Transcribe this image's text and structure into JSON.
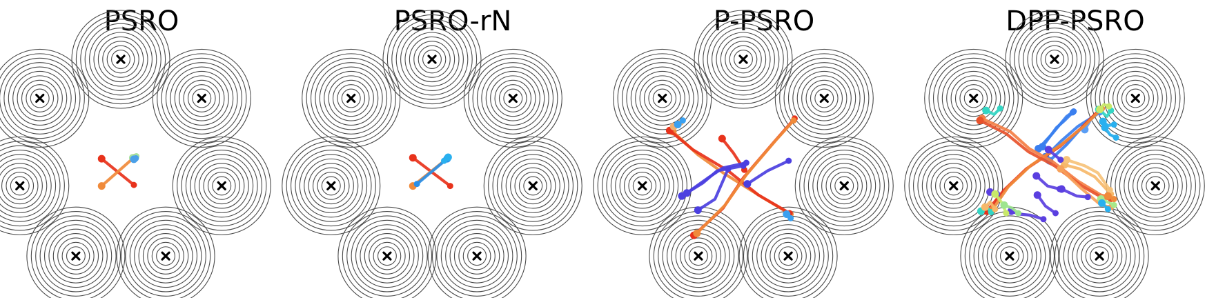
{
  "figure": {
    "ring_color": "#4a4a4a",
    "center_marker": "x-cross-marker",
    "mixture_centers": 7,
    "rings_per_center": 10
  },
  "panels": [
    {
      "title": "PSRO",
      "trajectories": [
        {
          "color": "#e8321b",
          "pts": [
            [
              -1.9,
              0.4
            ],
            [
              1.3,
              -2.2
            ]
          ]
        },
        {
          "color": "#f08a3a",
          "pts": [
            [
              -1.9,
              -2.3
            ],
            [
              1.4,
              0.6
            ]
          ]
        },
        {
          "color": "#a6e1a0",
          "pts": [
            [
              1.2,
              0.5
            ],
            [
              1.55,
              0.65
            ]
          ]
        },
        {
          "color": "#4aa0e8",
          "pts": [
            [
              1.3,
              0.35
            ],
            [
              1.5,
              0.45
            ]
          ]
        }
      ]
    },
    {
      "title": "PSRO-rN",
      "trajectories": [
        {
          "color": "#e8321b",
          "pts": [
            [
              -1.9,
              0.5
            ],
            [
              1.8,
              -2.3
            ]
          ]
        },
        {
          "color": "#f08a3a",
          "pts": [
            [
              -1.9,
              -2.3
            ],
            [
              1.6,
              0.5
            ]
          ]
        },
        {
          "color": "#2a8fe8",
          "pts": [
            [
              1.5,
              0.4
            ],
            [
              -1.5,
              -2.1
            ]
          ]
        },
        {
          "color": "#29b0ef",
          "pts": [
            [
              1.6,
              0.55
            ],
            [
              1.2,
              0.2
            ]
          ]
        }
      ]
    },
    {
      "title": "P-PSRO",
      "trajectories": [
        {
          "color": "#f08a3a",
          "pts": [
            [
              -7.0,
              3.1
            ],
            [
              -4.5,
              0.8
            ],
            [
              -2.0,
              -1.0
            ],
            [
              2.0,
              -3.5
            ],
            [
              4.7,
              -5.1
            ]
          ]
        },
        {
          "color": "#e8321b",
          "pts": [
            [
              -7.3,
              3.2
            ],
            [
              -5.0,
              1.3
            ],
            [
              -1.5,
              -0.8
            ],
            [
              1.5,
              -3.2
            ],
            [
              4.6,
              -5.0
            ]
          ]
        },
        {
          "color": "#e8321b",
          "pts": [
            [
              -4.9,
              -7.2
            ],
            [
              -2.0,
              -4.5
            ],
            [
              0.0,
              -1.5
            ],
            [
              3.0,
              2.0
            ],
            [
              5.1,
              4.4
            ]
          ]
        },
        {
          "color": "#f08a3a",
          "pts": [
            [
              -4.6,
              -7.0
            ],
            [
              -1.8,
              -4.2
            ],
            [
              0.3,
              -1.2
            ],
            [
              3.2,
              2.2
            ],
            [
              5.0,
              4.2
            ]
          ]
        },
        {
          "color": "#e8321b",
          "pts": [
            [
              -2.1,
              2.4
            ],
            [
              -1.0,
              1.0
            ],
            [
              0.1,
              -0.7
            ]
          ]
        },
        {
          "color": "#4b3fe0",
          "pts": [
            [
              -6.1,
              -3.3
            ],
            [
              -4.0,
              -2.0
            ],
            [
              -2.6,
              -0.8
            ],
            [
              0.0,
              -0.3
            ]
          ]
        },
        {
          "color": "#4b3fe0",
          "pts": [
            [
              -5.6,
              -3.0
            ],
            [
              -3.5,
              -1.5
            ],
            [
              -2.0,
              -0.5
            ],
            [
              0.3,
              0.0
            ]
          ]
        },
        {
          "color": "#4b3fe0",
          "pts": [
            [
              -4.5,
              -4.7
            ],
            [
              -2.8,
              -3.6
            ],
            [
              -1.5,
              -0.6
            ]
          ]
        },
        {
          "color": "#4b3fe0",
          "pts": [
            [
              0.4,
              -2.1
            ],
            [
              2.4,
              -0.8
            ],
            [
              4.5,
              0.2
            ]
          ]
        },
        {
          "color": "#f0b070",
          "pts": [
            [
              -6.9,
              3.6
            ],
            [
              -6.2,
              4.0
            ]
          ]
        },
        {
          "color": "#3aa0f0",
          "pts": [
            [
              -6.5,
              3.8
            ],
            [
              -6.0,
              4.2
            ]
          ]
        },
        {
          "color": "#3aa0f0",
          "pts": [
            [
              4.3,
              -5.1
            ],
            [
              4.7,
              -5.5
            ]
          ]
        }
      ]
    },
    {
      "title": "DPP-PSRO",
      "trajectories": [
        {
          "color": "#3a7fef",
          "pts": [
            [
              -1.6,
              1.4
            ],
            [
              -0.3,
              2.8
            ],
            [
              1.2,
              4.6
            ],
            [
              1.9,
              5.1
            ]
          ]
        },
        {
          "color": "#3a7fef",
          "pts": [
            [
              -1.2,
              1.6
            ],
            [
              0.2,
              3.5
            ],
            [
              1.0,
              4.2
            ],
            [
              1.8,
              5.0
            ]
          ]
        },
        {
          "color": "#3a7fef",
          "pts": [
            [
              -0.9,
              0.6
            ],
            [
              0.7,
              2.2
            ],
            [
              2.3,
              3.6
            ],
            [
              4.5,
              5.0
            ]
          ]
        },
        {
          "color": "#3a7fef",
          "pts": [
            [
              -0.5,
              0.2
            ],
            [
              1.2,
              1.8
            ],
            [
              2.8,
              3.6
            ],
            [
              4.6,
              5.2
            ]
          ]
        },
        {
          "color": "#5a9ef5",
          "pts": [
            [
              3.0,
              3.3
            ],
            [
              3.8,
              4.6
            ],
            [
              4.6,
              5.1
            ]
          ]
        },
        {
          "color": "#e8321b",
          "pts": [
            [
              -6.7,
              -4.8
            ],
            [
              -5.0,
              -2.7
            ],
            [
              -2.8,
              -0.6
            ],
            [
              0.5,
              1.6
            ],
            [
              2.6,
              3.4
            ],
            [
              4.5,
              5.3
            ]
          ]
        },
        {
          "color": "#f08a3a",
          "pts": [
            [
              -6.2,
              -4.7
            ],
            [
              -4.6,
              -2.4
            ],
            [
              -2.4,
              -0.3
            ],
            [
              0.8,
              1.9
            ],
            [
              2.9,
              3.6
            ],
            [
              4.7,
              5.4
            ]
          ]
        },
        {
          "color": "#f47f45",
          "pts": [
            [
              -7.2,
              4.4
            ],
            [
              -4.4,
              3.1
            ],
            [
              -2.5,
              1.4
            ],
            [
              -0.3,
              0.2
            ],
            [
              2.3,
              -1.8
            ],
            [
              4.6,
              -3.2
            ],
            [
              5.5,
              -3.4
            ]
          ]
        },
        {
          "color": "#e8522b",
          "pts": [
            [
              -7.4,
              4.2
            ],
            [
              -4.8,
              2.9
            ],
            [
              -2.6,
              1.1
            ],
            [
              0.0,
              -0.3
            ],
            [
              2.7,
              -2.3
            ],
            [
              4.8,
              -3.5
            ],
            [
              5.6,
              -3.6
            ]
          ]
        },
        {
          "color": "#f6b86a",
          "pts": [
            [
              1.0,
              -0.2
            ],
            [
              2.5,
              -0.6
            ],
            [
              4.0,
              -1.4
            ],
            [
              5.6,
              -3.1
            ]
          ]
        },
        {
          "color": "#f6c27a",
          "pts": [
            [
              1.2,
              0.3
            ],
            [
              3.0,
              -0.3
            ],
            [
              4.3,
              -1.0
            ],
            [
              5.5,
              -2.7
            ]
          ]
        },
        {
          "color": "#f7a15a",
          "pts": [
            [
              0.6,
              -0.6
            ],
            [
              2.6,
              -2.5
            ],
            [
              4.6,
              -4.2
            ],
            [
              5.6,
              -4.4
            ]
          ]
        },
        {
          "color": "#a8e88a",
          "pts": [
            [
              4.6,
              -3.6
            ],
            [
              5.5,
              -4.0
            ],
            [
              5.9,
              -4.2
            ]
          ]
        },
        {
          "color": "#5a3fe0",
          "pts": [
            [
              -1.8,
              -1.3
            ],
            [
              -0.7,
              -2.3
            ],
            [
              0.5,
              -2.6
            ]
          ]
        },
        {
          "color": "#5a3fe0",
          "pts": [
            [
              0.7,
              -2.6
            ],
            [
              2.2,
              -3.3
            ],
            [
              3.3,
              -3.4
            ]
          ]
        },
        {
          "color": "#5a3fe0",
          "pts": [
            [
              -1.7,
              -3.2
            ],
            [
              -0.9,
              -4.3
            ],
            [
              0.1,
              -5.0
            ]
          ]
        },
        {
          "color": "#5a3fe0",
          "pts": [
            [
              -4.3,
              -4.8
            ],
            [
              -3.5,
              -5.1
            ],
            [
              -2.4,
              -5.2
            ],
            [
              -1.1,
              -5.6
            ]
          ]
        },
        {
          "color": "#5a3fe0",
          "pts": [
            [
              -6.4,
              -2.9
            ],
            [
              -5.7,
              -3.1
            ]
          ]
        },
        {
          "color": "#5a3fe0",
          "pts": [
            [
              -0.6,
              1.3
            ],
            [
              0.1,
              0.7
            ],
            [
              0.6,
              0.3
            ]
          ]
        },
        {
          "color": "#c8e86a",
          "pts": [
            [
              -5.9,
              -3.1
            ],
            [
              -5.2,
              -4.0
            ],
            [
              -4.8,
              -5.0
            ]
          ]
        },
        {
          "color": "#9ee58e",
          "pts": [
            [
              -5.0,
              -4.2
            ],
            [
              -4.2,
              -4.5
            ],
            [
              -3.6,
              -5.0
            ]
          ]
        },
        {
          "color": "#33d6c4",
          "pts": [
            [
              -6.8,
              5.2
            ],
            [
              -6.0,
              4.8
            ],
            [
              -5.4,
              5.4
            ]
          ]
        },
        {
          "color": "#33d6c4",
          "pts": [
            [
              4.4,
              5.3
            ],
            [
              5.2,
              4.6
            ],
            [
              5.6,
              5.2
            ]
          ]
        },
        {
          "color": "#29b0ef",
          "pts": [
            [
              4.8,
              4.1
            ],
            [
              5.3,
              3.7
            ],
            [
              5.9,
              3.8
            ]
          ]
        },
        {
          "color": "#29b0ef",
          "pts": [
            [
              5.0,
              3.5
            ],
            [
              5.5,
              2.8
            ],
            [
              6.1,
              2.5
            ]
          ]
        },
        {
          "color": "#c8e86a",
          "pts": [
            [
              4.5,
              5.3
            ],
            [
              4.9,
              5.8
            ],
            [
              5.4,
              5.6
            ]
          ]
        },
        {
          "color": "#f08a3a",
          "pts": [
            [
              5.3,
              -3.3
            ],
            [
              5.9,
              -3.6
            ]
          ]
        },
        {
          "color": "#33d6c4",
          "pts": [
            [
              -7.3,
              -4.8
            ],
            [
              -6.8,
              -4.3
            ],
            [
              -6.3,
              -4.9
            ]
          ]
        },
        {
          "color": "#f6b86a",
          "pts": [
            [
              -6.9,
              -4.4
            ],
            [
              -6.4,
              -3.9
            ],
            [
              -5.9,
              -4.6
            ]
          ]
        },
        {
          "color": "#29b0ef",
          "pts": [
            [
              4.7,
              -4.0
            ],
            [
              5.3,
              -4.6
            ]
          ]
        }
      ]
    }
  ]
}
